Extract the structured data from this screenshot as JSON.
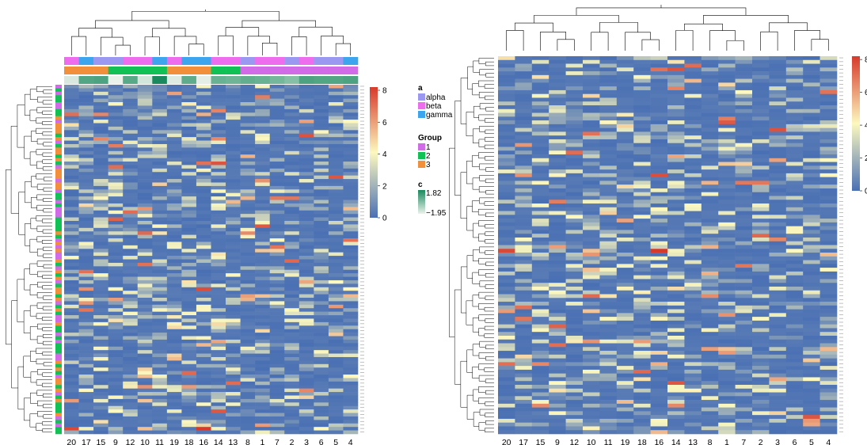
{
  "chart_data": [
    {
      "type": "heatmap",
      "columns": [
        "20",
        "17",
        "15",
        "9",
        "12",
        "10",
        "11",
        "19",
        "18",
        "16",
        "14",
        "13",
        "8",
        "1",
        "7",
        "2",
        "3",
        "6",
        "5",
        "4"
      ],
      "n_rows": 100,
      "column_annotation_a": [
        "beta",
        "gamma",
        "alpha",
        "alpha",
        "beta",
        "beta",
        "gamma",
        "beta",
        "gamma",
        "gamma",
        "beta",
        "beta",
        "alpha",
        "beta",
        "beta",
        "alpha",
        "beta",
        "alpha",
        "alpha",
        "gamma"
      ],
      "column_annotation_group": [
        "3",
        "3",
        "3",
        "2",
        "2",
        "2",
        "2",
        "3",
        "3",
        "3",
        "2",
        "2",
        "1",
        "1",
        "1",
        "1",
        "1",
        "1",
        "1",
        "1"
      ],
      "column_annotation_c": [
        -1.6,
        0.8,
        0.9,
        -1.9,
        0.7,
        -1.5,
        1.82,
        -1.7,
        0.6,
        -1.8,
        0.4,
        0.3,
        0.5,
        0.4,
        0.2,
        -0.1,
        0.9,
        0.8,
        0.8,
        0.9
      ],
      "row_annotation_group": "1 / 2 / 3 per row (pink / green / orange strip)",
      "value_range": [
        0,
        8.2
      ],
      "colorbar_ticks": [
        "8",
        "6",
        "4",
        "2",
        "0"
      ]
    },
    {
      "type": "heatmap",
      "columns": [
        "20",
        "17",
        "15",
        "9",
        "12",
        "10",
        "11",
        "19",
        "18",
        "16",
        "14",
        "13",
        "8",
        "1",
        "7",
        "2",
        "3",
        "6",
        "5",
        "4"
      ],
      "n_rows": 100,
      "value_range": [
        0,
        8.2
      ],
      "colorbar_ticks": [
        "8",
        "6",
        "4",
        "2",
        "0"
      ]
    }
  ],
  "legend": {
    "a": {
      "title": "a",
      "items": [
        {
          "label": "alpha",
          "color": "#9B98F2"
        },
        {
          "label": "beta",
          "color": "#EE6DEE"
        },
        {
          "label": "gamma",
          "color": "#3DA5EE"
        }
      ]
    },
    "group": {
      "title": "Group",
      "items": [
        {
          "label": "1",
          "color": "#D26BE8"
        },
        {
          "label": "2",
          "color": "#12C155"
        },
        {
          "label": "3",
          "color": "#F28F3B"
        }
      ]
    },
    "c": {
      "title": "c",
      "max_label": "1.82",
      "min_label": "−1.95",
      "colors": [
        "#ECF2EC",
        "#1A8A5E"
      ]
    }
  },
  "palette": {
    "low": "#4A70B4",
    "mid": "#FCF8BE",
    "high": "#D73A2B"
  }
}
